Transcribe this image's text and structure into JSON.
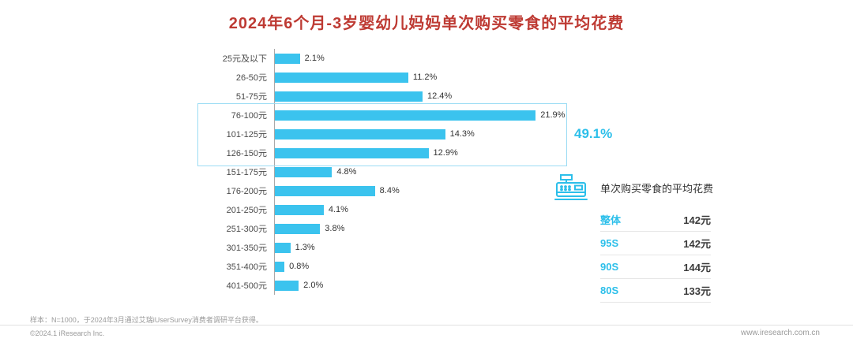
{
  "title": "2024年6个月-3岁婴幼儿妈妈单次购买零食的平均花费",
  "chart_data": {
    "type": "bar",
    "orientation": "horizontal",
    "title": "2024年6个月-3岁婴幼儿妈妈单次购买零食的平均花费",
    "categories": [
      "25元及以下",
      "26-50元",
      "51-75元",
      "76-100元",
      "101-125元",
      "126-150元",
      "151-175元",
      "176-200元",
      "201-250元",
      "251-300元",
      "301-350元",
      "351-400元",
      "401-500元"
    ],
    "values": [
      2.1,
      11.2,
      12.4,
      21.9,
      14.3,
      12.9,
      4.8,
      8.4,
      4.1,
      3.8,
      1.3,
      0.8,
      2.0
    ],
    "value_suffix": "%",
    "axis_max": 25,
    "xlim": [
      0,
      25
    ],
    "grid": false,
    "legend": "none",
    "highlight": {
      "categories": [
        "76-100元",
        "101-125元",
        "126-150元"
      ],
      "sum_label": "49.1%"
    }
  },
  "side_panel": {
    "icon": "cash-register-icon",
    "heading": "单次购买零食的平均花费",
    "table": {
      "rows": [
        {
          "label": "整体",
          "value": "142元"
        },
        {
          "label": "95S",
          "value": "142元"
        },
        {
          "label": "90S",
          "value": "144元"
        },
        {
          "label": "80S",
          "value": "133元"
        }
      ]
    }
  },
  "footer": {
    "sample_note": "样本：N=1000，于2024年3月通过艾瑞iUserSurvey消费者调研平台获得。",
    "copyright": "©2024.1 iResearch Inc.",
    "website": "www.iresearch.com.cn"
  },
  "colors": {
    "title": "#BE3A33",
    "accent": "#2CBFEA",
    "bar": "#3BC3EE"
  }
}
